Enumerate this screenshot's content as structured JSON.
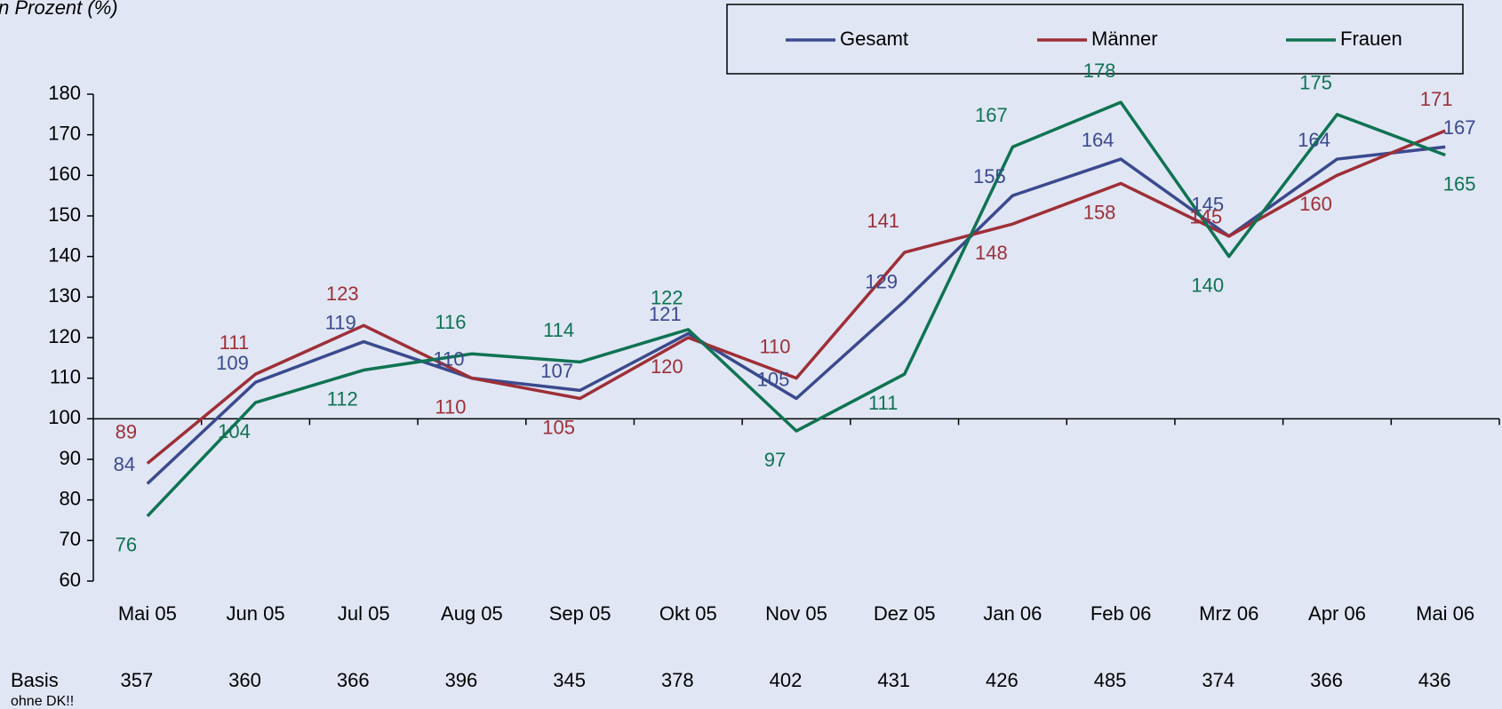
{
  "chart_data": {
    "type": "line",
    "y_axis_label": "In Prozent (%)",
    "categories": [
      "Mai 05",
      "Jun 05",
      "Jul 05",
      "Aug 05",
      "Sep 05",
      "Okt 05",
      "Nov 05",
      "Dez 05",
      "Jan 06",
      "Feb 06",
      "Mrz 06",
      "Apr 06",
      "Mai 06"
    ],
    "series": [
      {
        "name": "Gesamt",
        "color": "#3b4a8e",
        "values": [
          84,
          109,
          119,
          110,
          107,
          121,
          105,
          129,
          155,
          164,
          145,
          164,
          167
        ]
      },
      {
        "name": "Männer",
        "color": "#9e2f37",
        "values": [
          89,
          111,
          123,
          110,
          105,
          120,
          110,
          141,
          148,
          158,
          145,
          160,
          171
        ]
      },
      {
        "name": "Frauen",
        "color": "#0f7352",
        "values": [
          76,
          104,
          112,
          116,
          114,
          122,
          97,
          111,
          167,
          178,
          140,
          175,
          165
        ]
      }
    ],
    "ylim": [
      60,
      180
    ],
    "yticks": [
      60,
      70,
      80,
      90,
      100,
      110,
      120,
      130,
      140,
      150,
      160,
      170,
      180
    ],
    "x_axis_crosses": 100,
    "basis_label": "Basis",
    "basis_note": "ohne DK!!",
    "basis": [
      357,
      360,
      366,
      396,
      345,
      378,
      402,
      431,
      426,
      485,
      374,
      366,
      436
    ],
    "legend": "top-right",
    "grid": false
  }
}
